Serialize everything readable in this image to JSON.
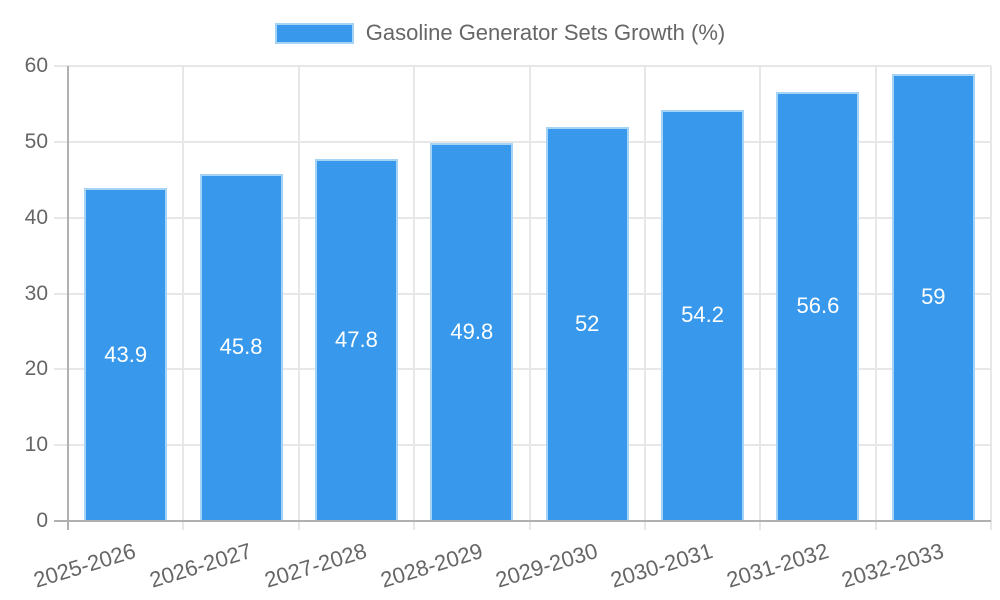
{
  "legend": {
    "label": "Gasoline Generator Sets Growth (%)"
  },
  "colors": {
    "bar_fill": "#3899EC",
    "bar_border": "#A5D3F6",
    "grid_line": "#E7E7E7",
    "axis_line": "#B0B0B0",
    "tick_text": "#666666",
    "data_label_text": "#FFFFFF",
    "background": "#FFFFFF"
  },
  "chart_data": {
    "type": "bar",
    "title": "Gasoline Generator Sets Growth (%)",
    "categories": [
      "2025-2026",
      "2026-2027",
      "2027-2028",
      "2028-2029",
      "2029-2030",
      "2030-2031",
      "2031-2032",
      "2032-2033"
    ],
    "values": [
      43.9,
      45.8,
      47.8,
      49.8,
      52,
      54.2,
      56.6,
      59
    ],
    "data_labels": [
      "43.9",
      "45.8",
      "47.8",
      "49.8",
      "52",
      "54.2",
      "56.6",
      "59"
    ],
    "xlabel": "",
    "ylabel": "",
    "ylim": [
      0,
      60
    ],
    "yticks": [
      0,
      10,
      20,
      30,
      40,
      50,
      60
    ],
    "grid": true,
    "legend_position": "top",
    "data_label_position": "inside-center",
    "x_tick_rotation_deg": -17
  }
}
